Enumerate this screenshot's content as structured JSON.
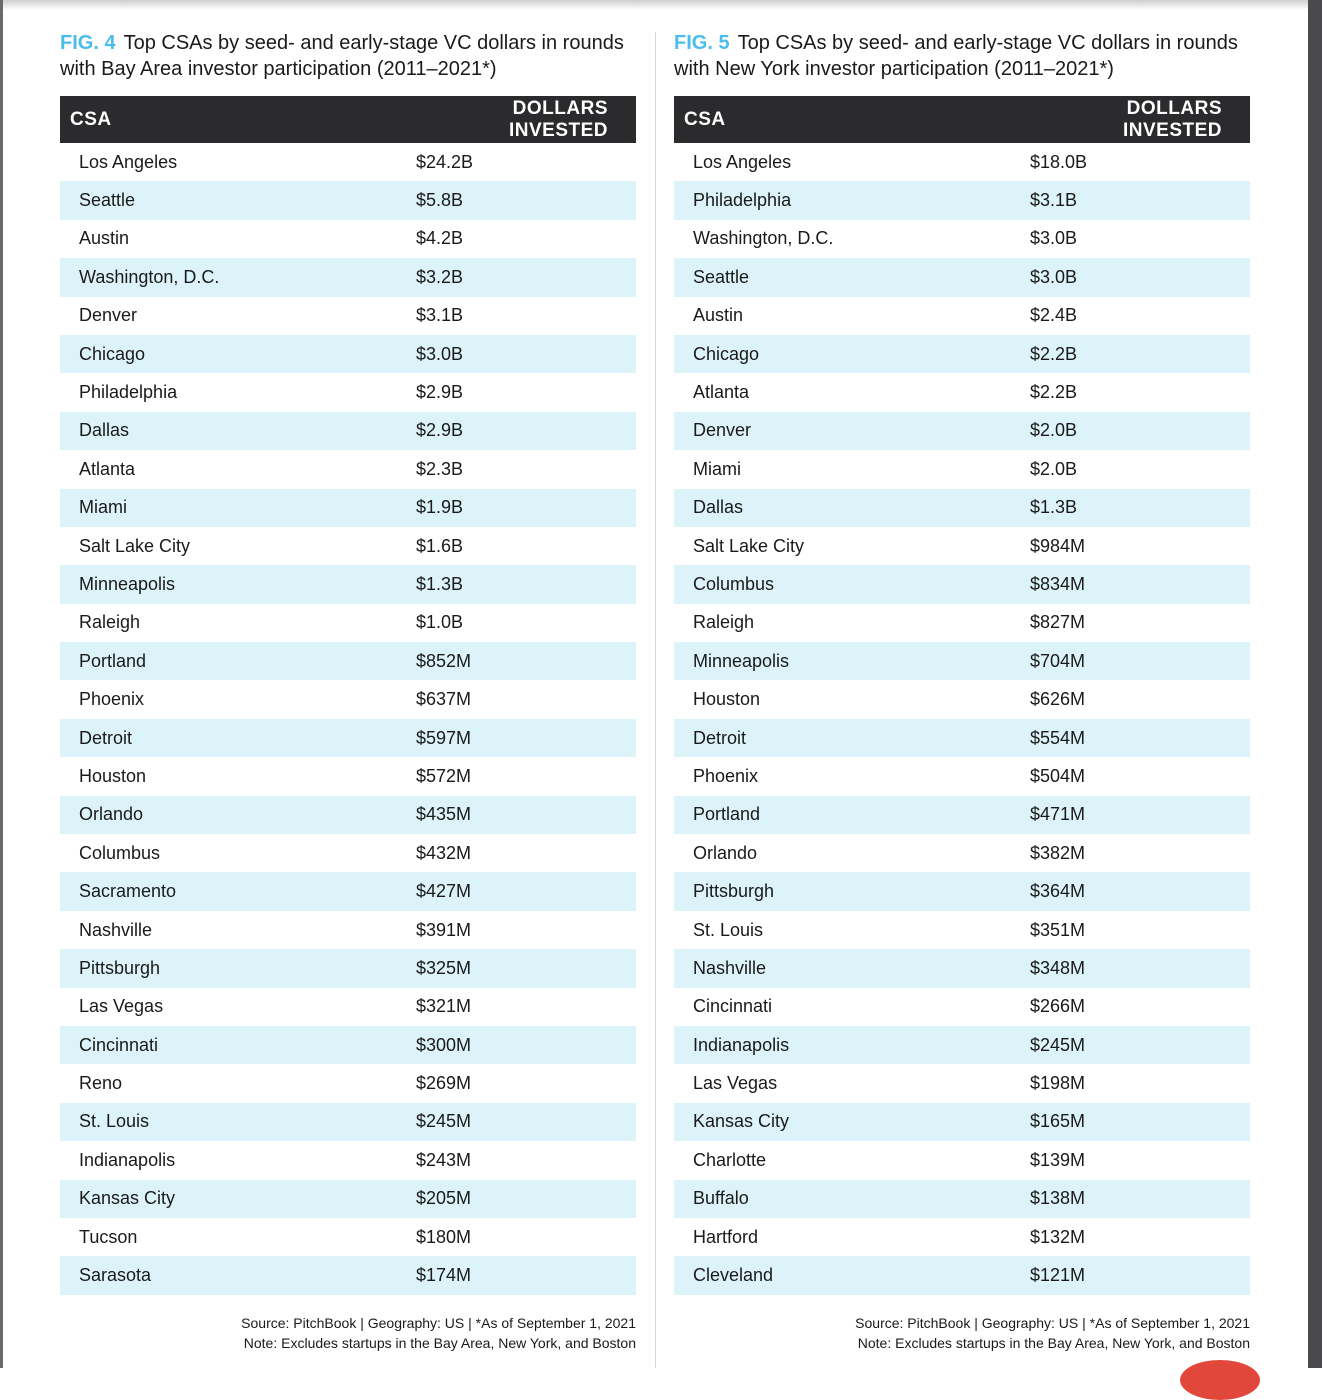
{
  "figures": [
    {
      "fig_label": "FIG. 4",
      "title": "Top CSAs by seed- and early-stage VC dollars in rounds with Bay Area investor participation (2011–2021*)",
      "columns": [
        "CSA",
        "DOLLARS INVESTED"
      ],
      "rows": [
        [
          "Los Angeles",
          "$24.2B"
        ],
        [
          "Seattle",
          "$5.8B"
        ],
        [
          "Austin",
          "$4.2B"
        ],
        [
          "Washington, D.C.",
          "$3.2B"
        ],
        [
          "Denver",
          "$3.1B"
        ],
        [
          "Chicago",
          "$3.0B"
        ],
        [
          "Philadelphia",
          "$2.9B"
        ],
        [
          "Dallas",
          "$2.9B"
        ],
        [
          "Atlanta",
          "$2.3B"
        ],
        [
          "Miami",
          "$1.9B"
        ],
        [
          "Salt Lake City",
          "$1.6B"
        ],
        [
          "Minneapolis",
          "$1.3B"
        ],
        [
          "Raleigh",
          "$1.0B"
        ],
        [
          "Portland",
          "$852M"
        ],
        [
          "Phoenix",
          "$637M"
        ],
        [
          "Detroit",
          "$597M"
        ],
        [
          "Houston",
          "$572M"
        ],
        [
          "Orlando",
          "$435M"
        ],
        [
          "Columbus",
          "$432M"
        ],
        [
          "Sacramento",
          "$427M"
        ],
        [
          "Nashville",
          "$391M"
        ],
        [
          "Pittsburgh",
          "$325M"
        ],
        [
          "Las Vegas",
          "$321M"
        ],
        [
          "Cincinnati",
          "$300M"
        ],
        [
          "Reno",
          "$269M"
        ],
        [
          "St. Louis",
          "$245M"
        ],
        [
          "Indianapolis",
          "$243M"
        ],
        [
          "Kansas City",
          "$205M"
        ],
        [
          "Tucson",
          "$180M"
        ],
        [
          "Sarasota",
          "$174M"
        ]
      ],
      "source": "Source: PitchBook | Geography: US | *As of September 1, 2021",
      "note": "Note: Excludes startups in the Bay Area, New York, and Boston"
    },
    {
      "fig_label": "FIG. 5",
      "title": "Top CSAs by seed- and early-stage VC dollars in rounds with New York investor participation (2011–2021*)",
      "columns": [
        "CSA",
        "DOLLARS INVESTED"
      ],
      "rows": [
        [
          "Los Angeles",
          "$18.0B"
        ],
        [
          "Philadelphia",
          "$3.1B"
        ],
        [
          "Washington, D.C.",
          "$3.0B"
        ],
        [
          "Seattle",
          "$3.0B"
        ],
        [
          "Austin",
          "$2.4B"
        ],
        [
          "Chicago",
          "$2.2B"
        ],
        [
          "Atlanta",
          "$2.2B"
        ],
        [
          "Denver",
          "$2.0B"
        ],
        [
          "Miami",
          "$2.0B"
        ],
        [
          "Dallas",
          "$1.3B"
        ],
        [
          "Salt Lake City",
          "$984M"
        ],
        [
          "Columbus",
          "$834M"
        ],
        [
          "Raleigh",
          "$827M"
        ],
        [
          "Minneapolis",
          "$704M"
        ],
        [
          "Houston",
          "$626M"
        ],
        [
          "Detroit",
          "$554M"
        ],
        [
          "Phoenix",
          "$504M"
        ],
        [
          "Portland",
          "$471M"
        ],
        [
          "Orlando",
          "$382M"
        ],
        [
          "Pittsburgh",
          "$364M"
        ],
        [
          "St. Louis",
          "$351M"
        ],
        [
          "Nashville",
          "$348M"
        ],
        [
          "Cincinnati",
          "$266M"
        ],
        [
          "Indianapolis",
          "$245M"
        ],
        [
          "Las Vegas",
          "$198M"
        ],
        [
          "Kansas City",
          "$165M"
        ],
        [
          "Charlotte",
          "$139M"
        ],
        [
          "Buffalo",
          "$138M"
        ],
        [
          "Hartford",
          "$132M"
        ],
        [
          "Cleveland",
          "$121M"
        ]
      ],
      "source": "Source: PitchBook | Geography: US | *As of September 1, 2021",
      "note": "Note: Excludes startups in the Bay Area, New York, and Boston"
    }
  ],
  "colors": {
    "accent": "#4cbcea",
    "header_bg": "#2b2b2e",
    "stripe": "#ddf3fa"
  }
}
